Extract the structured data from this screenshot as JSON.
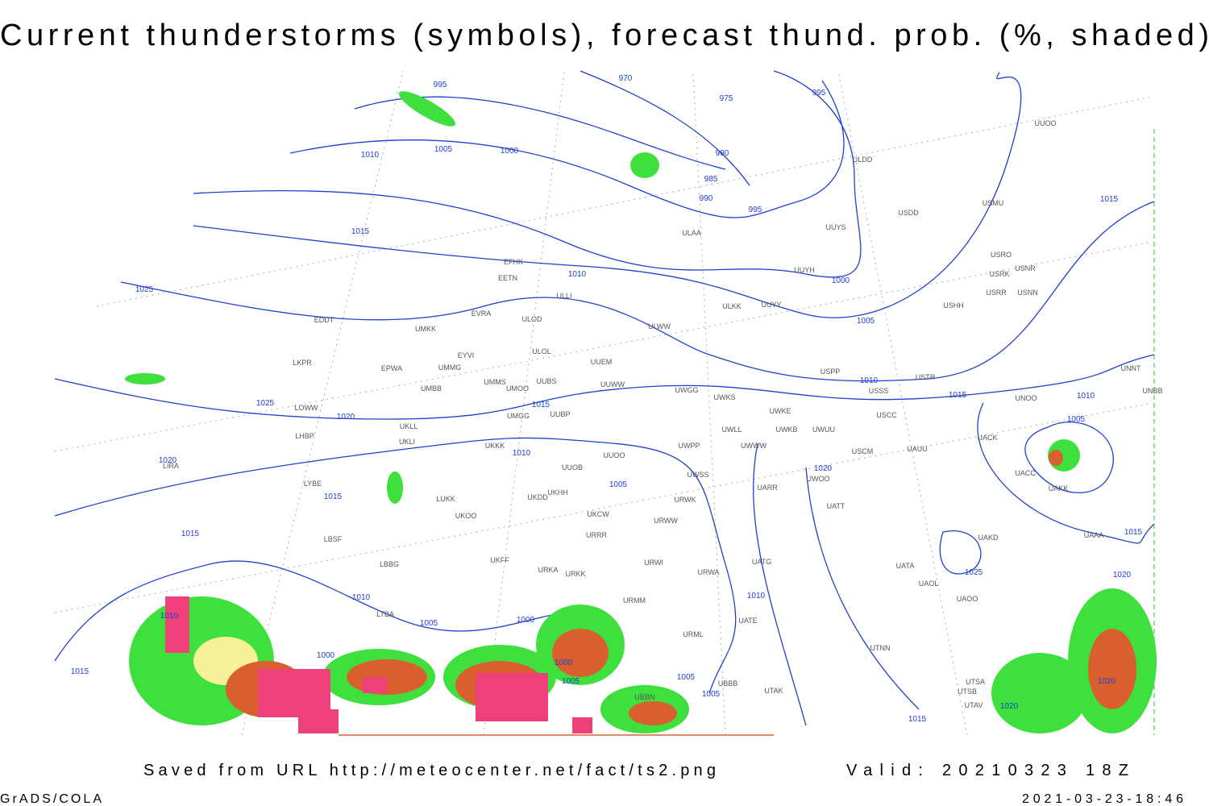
{
  "header": {
    "title": "Current thunderstorms (symbols), forecast thund. prob. (%, shaded)"
  },
  "footer": {
    "source": "Saved from URL http://meteocenter.net/fact/ts2.png",
    "valid": "Valid: 20210323 18Z",
    "software": "GrADS/COLA",
    "timestamp": "2021-03-23-18:46"
  },
  "map": {
    "isobar_labels": [
      995,
      970,
      975,
      995,
      1005,
      1000,
      1010,
      980,
      985,
      990,
      995,
      1015,
      1015,
      1010,
      1000,
      1025,
      1005,
      1010,
      1015,
      1015,
      1010,
      1005,
      1025,
      1020,
      1020,
      1010,
      1020,
      1015,
      1005,
      1015,
      1015,
      1025,
      1020,
      1010,
      1010,
      1010,
      1005,
      1000,
      1000,
      1000,
      1005,
      1005,
      1005,
      1020,
      1020,
      1015,
      1015
    ],
    "stations": [
      "UUOO",
      "ULDD",
      "USDD",
      "USMU",
      "ULAA",
      "UUYS",
      "USRO",
      "USRK",
      "USNR",
      "USRR",
      "USNN",
      "UUYH",
      "EFHK",
      "EETN",
      "ULLI",
      "ULKK",
      "UUYY",
      "USHH",
      "EDDT",
      "EVRA",
      "ULOD",
      "UMKK",
      "ULWW",
      "EYVI",
      "ULOL",
      "UUEM",
      "LKPR",
      "EPWA",
      "UMMG",
      "USPP",
      "USTR",
      "UMMS",
      "UMOO",
      "UUBS",
      "UUWW",
      "UNNT",
      "UMBB",
      "UWGG",
      "USSS",
      "UWKS",
      "UNOO",
      "UNBB",
      "LOWW",
      "UMGG",
      "UUBP",
      "UWKE",
      "USCC",
      "UKLL",
      "UWLL",
      "UWKB",
      "UWUU",
      "UKLI",
      "LHBP",
      "UACK",
      "UKKK",
      "UWPP",
      "UWWW",
      "USCM",
      "UAUU",
      "UUOO",
      "LIRA",
      "UUOB",
      "UWSS",
      "UACC",
      "LYBE",
      "UKHH",
      "UKDD",
      "UATT",
      "URWK",
      "LUKK",
      "UKOO",
      "UKCW",
      "URWW",
      "UARR",
      "UAKK",
      "UWOO",
      "UAAA",
      "UAKD",
      "URRR",
      "LBSF",
      "UKFF",
      "URWI",
      "URKA",
      "URKK",
      "UATG",
      "LBBG",
      "URWA",
      "UATA",
      "UAOL",
      "UAOO",
      "URMM",
      "UATE",
      "LTBA",
      "URML",
      "UTNN",
      "UBBB",
      "UTAK",
      "UTSA",
      "UTSB",
      "UBBN",
      "UTAV"
    ]
  }
}
